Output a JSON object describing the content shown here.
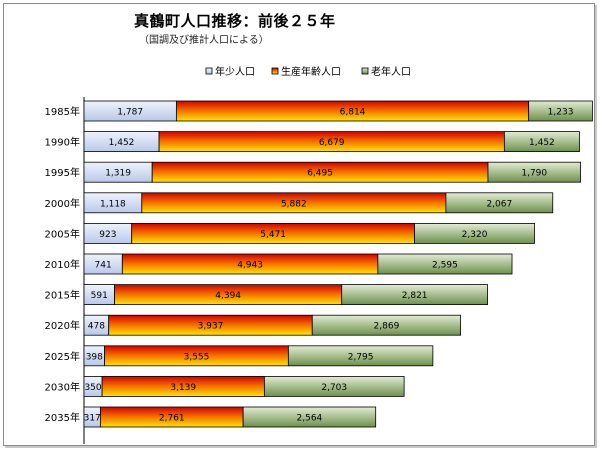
{
  "chart_data": {
    "type": "bar",
    "stacked": true,
    "orientation": "horizontal",
    "title": "真鶴町人口推移：前後２５年",
    "subtitle": "（国調及び推計人口による）",
    "categories": [
      "1985年",
      "1990年",
      "1995年",
      "2000年",
      "2005年",
      "2010年",
      "2015年",
      "2020年",
      "2025年",
      "2030年",
      "2035年"
    ],
    "series": [
      {
        "name": "年少人口",
        "color": "#c5d4ef",
        "values": [
          1787,
          1452,
          1319,
          1118,
          923,
          741,
          591,
          478,
          398,
          350,
          317
        ]
      },
      {
        "name": "生産年齢人口",
        "color": "#ee5a00",
        "values": [
          6814,
          6679,
          6495,
          5882,
          5471,
          4943,
          4394,
          3937,
          3555,
          3139,
          2761
        ]
      },
      {
        "name": "老年人口",
        "color": "#8fae6c",
        "values": [
          1233,
          1452,
          1790,
          2067,
          2320,
          2595,
          2821,
          2869,
          2795,
          2703,
          2564
        ]
      }
    ],
    "xlim": [
      0,
      10000
    ],
    "legend_position": "top",
    "grid": false
  }
}
